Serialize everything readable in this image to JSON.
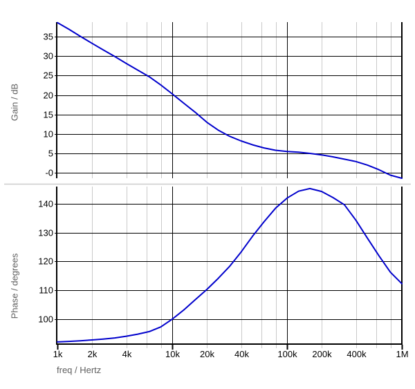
{
  "figure": {
    "background": "#FFFFFF",
    "curve_color": "#0000CC",
    "grid_major_color": "#000000",
    "grid_minor_color": "#C9C9C9",
    "divider_color": "#CCCCCC",
    "tick_text_color": "#000000",
    "axis_title_color": "#5F5F5F",
    "x_axis_label": "freq / Hertz"
  },
  "x_ticks": [
    {
      "f": 1000,
      "label": "1k",
      "major": true
    },
    {
      "f": 2000,
      "label": "2k",
      "major": false
    },
    {
      "f": 4000,
      "label": "4k",
      "major": false
    },
    {
      "f": 6000,
      "label": "",
      "major": false
    },
    {
      "f": 8000,
      "label": "",
      "major": false
    },
    {
      "f": 10000,
      "label": "10k",
      "major": true
    },
    {
      "f": 20000,
      "label": "20k",
      "major": false
    },
    {
      "f": 40000,
      "label": "40k",
      "major": false
    },
    {
      "f": 60000,
      "label": "",
      "major": false
    },
    {
      "f": 80000,
      "label": "",
      "major": false
    },
    {
      "f": 100000,
      "label": "100k",
      "major": true
    },
    {
      "f": 200000,
      "label": "200k",
      "major": false
    },
    {
      "f": 400000,
      "label": "400k",
      "major": false
    },
    {
      "f": 600000,
      "label": "",
      "major": false
    },
    {
      "f": 800000,
      "label": "",
      "major": false
    },
    {
      "f": 1000000,
      "label": "1M",
      "major": true
    }
  ],
  "chart_data": [
    {
      "type": "line",
      "name": "gain",
      "ylabel": "Gain / dB",
      "x_scale": "log",
      "x_range": [
        1000,
        1000000
      ],
      "y_range": [
        -1.4,
        38.75
      ],
      "grid": true,
      "legend": false,
      "y_gridlines": [
        {
          "v": 35,
          "label": "35"
        },
        {
          "v": 30,
          "label": "30"
        },
        {
          "v": 25,
          "label": "25"
        },
        {
          "v": 20,
          "label": "20"
        },
        {
          "v": 15,
          "label": "15"
        },
        {
          "v": 10,
          "label": "10"
        },
        {
          "v": 5,
          "label": "5"
        },
        {
          "v": 0,
          "label": "-0"
        }
      ],
      "series": [
        {
          "name": "gain",
          "x": [
            1000,
            1260,
            1580,
            2000,
            2510,
            3160,
            3980,
            5010,
            6310,
            7940,
            10000,
            12600,
            15800,
            20000,
            25100,
            31600,
            39800,
            50100,
            63100,
            79400,
            100000,
            126000,
            158000,
            200000,
            251000,
            316000,
            398000,
            501000,
            631000,
            794000,
            1000000
          ],
          "y": [
            38.6,
            36.9,
            35.1,
            33.3,
            31.6,
            29.9,
            28.1,
            26.4,
            24.7,
            22.6,
            20.3,
            17.9,
            15.6,
            13.0,
            11.0,
            9.4,
            8.2,
            7.2,
            6.4,
            5.8,
            5.5,
            5.3,
            5.0,
            4.6,
            4.1,
            3.5,
            2.9,
            2.0,
            0.8,
            -0.6,
            -1.4
          ]
        }
      ]
    },
    {
      "type": "line",
      "name": "phase",
      "ylabel": "Phase / degrees",
      "x_scale": "log",
      "x_range": [
        1000,
        1000000
      ],
      "y_range": [
        91.6,
        146.0
      ],
      "grid": true,
      "legend": false,
      "y_gridlines": [
        {
          "v": 140,
          "label": "140"
        },
        {
          "v": 130,
          "label": "130"
        },
        {
          "v": 120,
          "label": "120"
        },
        {
          "v": 110,
          "label": "110"
        },
        {
          "v": 100,
          "label": "100"
        }
      ],
      "series": [
        {
          "name": "phase",
          "x": [
            1000,
            1260,
            1580,
            2000,
            2510,
            3160,
            3980,
            5010,
            6310,
            7940,
            10000,
            12600,
            15800,
            20000,
            25100,
            31600,
            39800,
            50100,
            63100,
            79400,
            100000,
            126000,
            158000,
            200000,
            251000,
            316000,
            398000,
            501000,
            631000,
            794000,
            1000000
          ],
          "y": [
            92.1,
            92.3,
            92.5,
            92.8,
            93.1,
            93.5,
            94.1,
            94.8,
            95.7,
            97.3,
            100.0,
            103.2,
            106.7,
            110.3,
            114.1,
            118.3,
            123.3,
            128.8,
            133.8,
            138.5,
            142.0,
            144.4,
            145.3,
            144.3,
            142.2,
            139.7,
            134.3,
            128.1,
            122.0,
            116.3,
            112.3
          ]
        }
      ]
    }
  ]
}
